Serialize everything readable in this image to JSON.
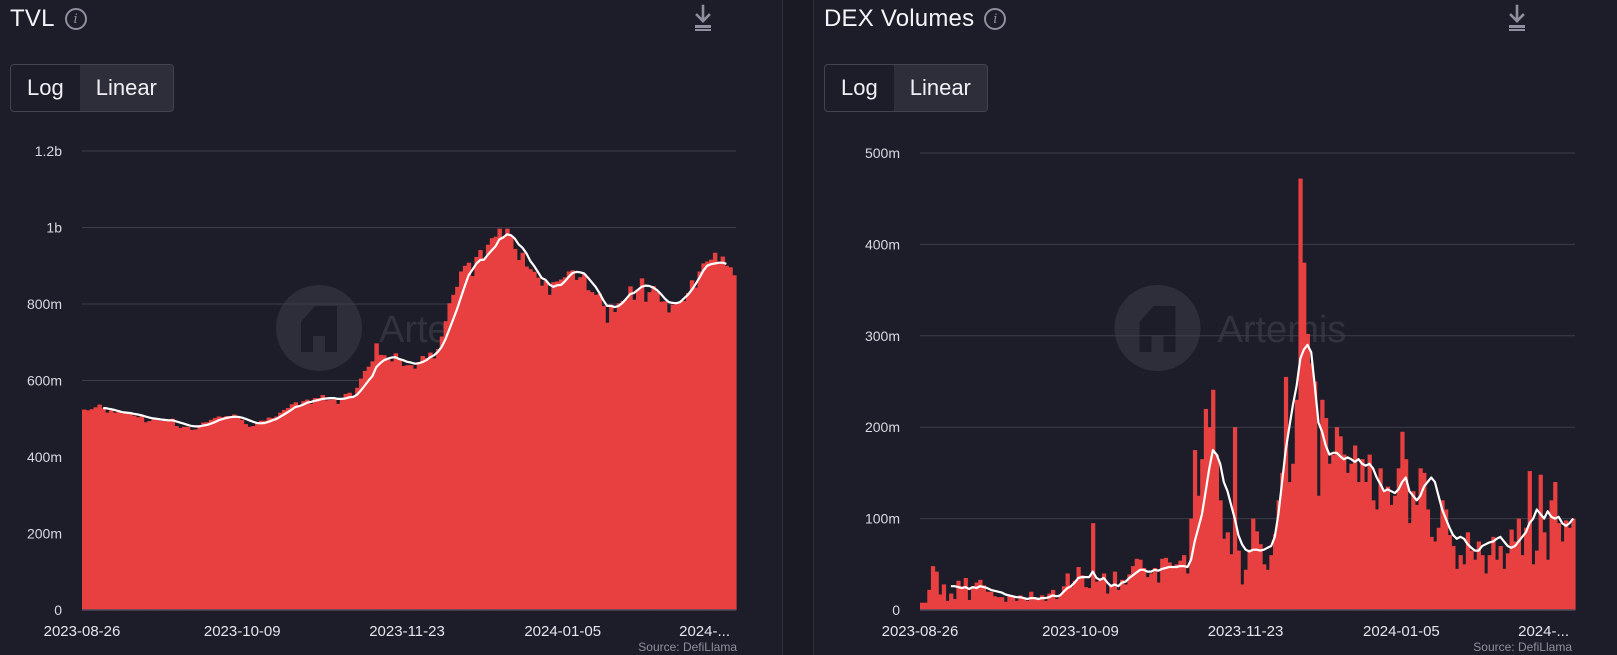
{
  "panels": [
    {
      "title": "TVL",
      "toggle": {
        "log_label": "Log",
        "linear_label": "Linear",
        "selected": "Linear"
      },
      "source": "Source: DefiLlama",
      "watermark": "Artemis"
    },
    {
      "title": "DEX Volumes",
      "toggle": {
        "log_label": "Log",
        "linear_label": "Linear",
        "selected": "Linear"
      },
      "source": "Source: DefiLlama",
      "watermark": "Artemis"
    }
  ],
  "colors": {
    "bar": "#e84040",
    "line": "#ffffff",
    "grid": "#3d3d4b",
    "background": "#1d1d29"
  },
  "icons": {
    "info": "info-circle-icon",
    "download": "download-icon"
  },
  "chart_data": [
    {
      "type": "bar",
      "title": "TVL",
      "scale": "linear",
      "ylim": [
        0,
        1200000000
      ],
      "yticks": [
        0,
        200000000,
        400000000,
        600000000,
        800000000,
        1000000000,
        1200000000
      ],
      "yticklabels": [
        "0",
        "200m",
        "400m",
        "600m",
        "800m",
        "1b",
        "1.2b"
      ],
      "xticklabels": [
        "2023-08-26",
        "2023-10-09",
        "2023-11-23",
        "2024-01-05",
        "2024-..."
      ],
      "grid": true,
      "series": [
        {
          "type": "bar",
          "values": [
            524000000.0,
            522000000.0,
            525000000.0,
            530000000.0,
            537000000.0,
            527000000.0,
            516000000.0,
            522000000.0,
            516000000.0,
            518000000.0,
            514000000.0,
            514000000.0,
            515000000.0,
            508000000.0,
            504000000.0,
            510000000.0,
            491000000.0,
            494000000.0,
            498000000.0,
            499000000.0,
            494000000.0,
            497000000.0,
            498000000.0,
            500000000.0,
            481000000.0,
            476000000.0,
            479000000.0,
            479000000.0,
            471000000.0,
            472000000.0,
            483000000.0,
            490000000.0,
            491000000.0,
            497000000.0,
            502000000.0,
            506000000.0,
            504000000.0,
            507000000.0,
            506000000.0,
            511000000.0,
            503000000.0,
            497000000.0,
            486000000.0,
            479000000.0,
            481000000.0,
            489000000.0,
            495000000.0,
            495000000.0,
            503000000.0,
            502000000.0,
            506000000.0,
            516000000.0,
            523000000.0,
            528000000.0,
            538000000.0,
            543000000.0,
            533000000.0,
            546000000.0,
            550000000.0,
            539000000.0,
            554000000.0,
            554000000.0,
            562000000.0,
            548000000.0,
            550000000.0,
            551000000.0,
            539000000.0,
            554000000.0,
            565000000.0,
            568000000.0,
            558000000.0,
            581000000.0,
            605000000.0,
            625000000.0,
            636000000.0,
            650000000.0,
            697000000.0,
            667000000.0,
            666000000.0,
            659000000.0,
            650000000.0,
            671000000.0,
            654000000.0,
            638000000.0,
            640000000.0,
            640000000.0,
            631000000.0,
            648000000.0,
            664000000.0,
            659000000.0,
            673000000.0,
            658000000.0,
            682000000.0,
            715000000.0,
            755000000.0,
            802000000.0,
            824000000.0,
            845000000.0,
            885000000.0,
            900000000.0,
            908000000.0,
            873000000.0,
            923000000.0,
            941000000.0,
            919000000.0,
            955000000.0,
            972000000.0,
            976000000.0,
            997000000.0,
            976000000.0,
            997000000.0,
            978000000.0,
            944000000.0,
            915000000.0,
            934000000.0,
            898000000.0,
            891000000.0,
            884000000.0,
            869000000.0,
            848000000.0,
            860000000.0,
            824000000.0,
            857000000.0,
            859000000.0,
            864000000.0,
            870000000.0,
            885000000.0,
            888000000.0,
            863000000.0,
            870000000.0,
            879000000.0,
            836000000.0,
            831000000.0,
            824000000.0,
            827000000.0,
            795000000.0,
            751000000.0,
            798000000.0,
            779000000.0,
            802000000.0,
            808000000.0,
            812000000.0,
            846000000.0,
            811000000.0,
            838000000.0,
            867000000.0,
            806000000.0,
            831000000.0,
            847000000.0,
            832000000.0,
            806000000.0,
            807000000.0,
            778000000.0,
            798000000.0,
            805000000.0,
            804000000.0,
            808000000.0,
            829000000.0,
            862000000.0,
            843000000.0,
            885000000.0,
            906000000.0,
            911000000.0,
            916000000.0,
            934000000.0,
            910000000.0,
            924000000.0,
            900000000.0,
            896000000.0,
            875000000.0
          ]
        },
        {
          "type": "line",
          "values": [
            null,
            null,
            null,
            null,
            null,
            528000000.0,
            527000000.0,
            525000000.0,
            523000000.0,
            520000000.0,
            517000000.0,
            516000000.0,
            515000000.0,
            513000000.0,
            511000000.0,
            509000000.0,
            506000000.0,
            503000000.0,
            501000000.0,
            500000000.0,
            498000000.0,
            497000000.0,
            496000000.0,
            496000000.0,
            493000000.0,
            490000000.0,
            487000000.0,
            484000000.0,
            481000000.0,
            480000000.0,
            480000000.0,
            482000000.0,
            484000000.0,
            487000000.0,
            491000000.0,
            496000000.0,
            499000000.0,
            502000000.0,
            504000000.0,
            505000000.0,
            505000000.0,
            503000000.0,
            500000000.0,
            496000000.0,
            492000000.0,
            489000000.0,
            488000000.0,
            489000000.0,
            492000000.0,
            496000000.0,
            499000000.0,
            505000000.0,
            511000000.0,
            517000000.0,
            524000000.0,
            531000000.0,
            533000000.0,
            537000000.0,
            542000000.0,
            544000000.0,
            547000000.0,
            549000000.0,
            552000000.0,
            553000000.0,
            554000000.0,
            554000000.0,
            552000000.0,
            552000000.0,
            553000000.0,
            556000000.0,
            557000000.0,
            563000000.0,
            574000000.0,
            587000000.0,
            600000000.0,
            612000000.0,
            635000000.0,
            645000000.0,
            653000000.0,
            657000000.0,
            660000000.0,
            661000000.0,
            656000000.0,
            653000000.0,
            649000000.0,
            647000000.0,
            644000000.0,
            645000000.0,
            648000000.0,
            653000000.0,
            661000000.0,
            666000000.0,
            675000000.0,
            688000000.0,
            708000000.0,
            734000000.0,
            760000000.0,
            787000000.0,
            817000000.0,
            847000000.0,
            875000000.0,
            890000000.0,
            905000000.0,
            915000000.0,
            916000000.0,
            929000000.0,
            940000000.0,
            951000000.0,
            969000000.0,
            974000000.0,
            982000000.0,
            980000000.0,
            971000000.0,
            956000000.0,
            947000000.0,
            933000000.0,
            913000000.0,
            900000000.0,
            884000000.0,
            868000000.0,
            863000000.0,
            851000000.0,
            845000000.0,
            849000000.0,
            850000000.0,
            859000000.0,
            871000000.0,
            881000000.0,
            884000000.0,
            883000000.0,
            880000000.0,
            869000000.0,
            857000000.0,
            845000000.0,
            829000000.0,
            810000000.0,
            795000000.0,
            795000000.0,
            792000000.0,
            795000000.0,
            803000000.0,
            814000000.0,
            826000000.0,
            829000000.0,
            837000000.0,
            845000000.0,
            848000000.0,
            847000000.0,
            843000000.0,
            836000000.0,
            826000000.0,
            814000000.0,
            805000000.0,
            803000000.0,
            802000000.0,
            805000000.0,
            815000000.0,
            824000000.0,
            837000000.0,
            852000000.0,
            869000000.0,
            887000000.0,
            900000000.0,
            904000000.0,
            906000000.0,
            908000000.0,
            908000000.0,
            905000000.0
          ]
        }
      ]
    },
    {
      "type": "bar",
      "title": "DEX Volumes",
      "scale": "linear",
      "ylim": [
        0,
        500000000
      ],
      "yticks": [
        0,
        100000000,
        200000000,
        300000000,
        400000000,
        500000000
      ],
      "yticklabels": [
        "0",
        "100m",
        "200m",
        "300m",
        "400m",
        "500m"
      ],
      "xticklabels": [
        "2023-08-26",
        "2023-10-09",
        "2023-11-23",
        "2024-01-05",
        "2024-..."
      ],
      "grid": true,
      "series": [
        {
          "type": "bar",
          "values": [
            8000000.0,
            8000000.0,
            22000000.0,
            48000000.0,
            42000000.0,
            17000000.0,
            28000000.0,
            10000000.0,
            18000000.0,
            12000000.0,
            32000000.0,
            26000000.0,
            35000000.0,
            11000000.0,
            26000000.0,
            30000000.0,
            33000000.0,
            27000000.0,
            20000000.0,
            20000000.0,
            15000000.0,
            14000000.0,
            14000000.0,
            9000000.0,
            16000000.0,
            15000000.0,
            10000000.0,
            16000000.0,
            12000000.0,
            10000000.0,
            20000000.0,
            14000000.0,
            11000000.0,
            16000000.0,
            10000000.0,
            18000000.0,
            22000000.0,
            12000000.0,
            16000000.0,
            26000000.0,
            40000000.0,
            25000000.0,
            32000000.0,
            47000000.0,
            38000000.0,
            25000000.0,
            24000000.0,
            95000000.0,
            31000000.0,
            33000000.0,
            40000000.0,
            18000000.0,
            28000000.0,
            42000000.0,
            22000000.0,
            33000000.0,
            28000000.0,
            39000000.0,
            48000000.0,
            56000000.0,
            55000000.0,
            46000000.0,
            36000000.0,
            40000000.0,
            46000000.0,
            30000000.0,
            56000000.0,
            57000000.0,
            52000000.0,
            48000000.0,
            50000000.0,
            54000000.0,
            60000000.0,
            40000000.0,
            100000000.0,
            175000000.0,
            125000000.0,
            165000000.0,
            220000000.0,
            200000000.0,
            241000000.0,
            170000000.0,
            120000000.0,
            78000000.0,
            85000000.0,
            61000000.0,
            200000000.0,
            65000000.0,
            28000000.0,
            44000000.0,
            66000000.0,
            100000000.0,
            86000000.0,
            72000000.0,
            50000000.0,
            44000000.0,
            60000000.0,
            83000000.0,
            120000000.0,
            150000000.0,
            255000000.0,
            140000000.0,
            160000000.0,
            230000000.0,
            472000000.0,
            380000000.0,
            302000000.0,
            270000000.0,
            250000000.0,
            125000000.0,
            230000000.0,
            210000000.0,
            160000000.0,
            170000000.0,
            200000000.0,
            190000000.0,
            170000000.0,
            150000000.0,
            160000000.0,
            180000000.0,
            140000000.0,
            165000000.0,
            140000000.0,
            170000000.0,
            120000000.0,
            110000000.0,
            155000000.0,
            130000000.0,
            135000000.0,
            115000000.0,
            125000000.0,
            155000000.0,
            195000000.0,
            165000000.0,
            95000000.0,
            130000000.0,
            115000000.0,
            155000000.0,
            150000000.0,
            110000000.0,
            80000000.0,
            75000000.0,
            90000000.0,
            120000000.0,
            110000000.0,
            82000000.0,
            70000000.0,
            45000000.0,
            60000000.0,
            50000000.0,
            85000000.0,
            65000000.0,
            55000000.0,
            75000000.0,
            60000000.0,
            40000000.0,
            60000000.0,
            80000000.0,
            55000000.0,
            70000000.0,
            45000000.0,
            62000000.0,
            88000000.0,
            75000000.0,
            100000000.0,
            60000000.0,
            90000000.0,
            152000000.0,
            50000000.0,
            65000000.0,
            148000000.0,
            85000000.0,
            55000000.0,
            120000000.0,
            140000000.0,
            95000000.0,
            75000000.0,
            98000000.0,
            90000000.0,
            100000000.0
          ]
        },
        {
          "type": "line",
          "values": [
            null,
            null,
            null,
            null,
            null,
            null,
            null,
            null,
            26000000.0,
            26000000.0,
            25000000.0,
            24000000.0,
            25000000.0,
            23000000.0,
            25000000.0,
            24000000.0,
            26000000.0,
            25000000.0,
            24000000.0,
            22000000.0,
            21000000.0,
            20000000.0,
            19000000.0,
            17000000.0,
            16000000.0,
            15000000.0,
            14000000.0,
            14000000.0,
            13000000.0,
            12000000.0,
            13000000.0,
            13000000.0,
            12000000.0,
            13000000.0,
            13000000.0,
            14000000.0,
            16000000.0,
            15000000.0,
            16000000.0,
            20000000.0,
            24000000.0,
            26000000.0,
            30000000.0,
            35000000.0,
            36000000.0,
            36000000.0,
            36000000.0,
            42000000.0,
            35000000.0,
            33000000.0,
            35000000.0,
            30000000.0,
            26000000.0,
            28000000.0,
            26000000.0,
            30000000.0,
            31000000.0,
            35000000.0,
            38000000.0,
            41000000.0,
            44000000.0,
            44000000.0,
            42000000.0,
            42000000.0,
            44000000.0,
            43000000.0,
            45000000.0,
            46000000.0,
            47000000.0,
            47000000.0,
            47000000.0,
            48000000.0,
            48000000.0,
            47000000.0,
            55000000.0,
            75000000.0,
            90000000.0,
            105000000.0,
            130000000.0,
            155000000.0,
            175000000.0,
            170000000.0,
            160000000.0,
            140000000.0,
            130000000.0,
            115000000.0,
            100000000.0,
            82000000.0,
            72000000.0,
            66000000.0,
            64000000.0,
            66000000.0,
            66000000.0,
            65000000.0,
            66000000.0,
            68000000.0,
            70000000.0,
            80000000.0,
            105000000.0,
            140000000.0,
            175000000.0,
            200000000.0,
            225000000.0,
            245000000.0,
            275000000.0,
            285000000.0,
            290000000.0,
            282000000.0,
            245000000.0,
            205000000.0,
            195000000.0,
            180000000.0,
            170000000.0,
            172000000.0,
            172000000.0,
            168000000.0,
            165000000.0,
            167000000.0,
            165000000.0,
            162000000.0,
            165000000.0,
            160000000.0,
            158000000.0,
            160000000.0,
            155000000.0,
            145000000.0,
            138000000.0,
            130000000.0,
            132000000.0,
            130000000.0,
            128000000.0,
            132000000.0,
            140000000.0,
            145000000.0,
            130000000.0,
            125000000.0,
            120000000.0,
            125000000.0,
            135000000.0,
            140000000.0,
            145000000.0,
            140000000.0,
            125000000.0,
            110000000.0,
            100000000.0,
            90000000.0,
            82000000.0,
            78000000.0,
            80000000.0,
            78000000.0,
            72000000.0,
            68000000.0,
            65000000.0,
            65000000.0,
            70000000.0,
            72000000.0,
            74000000.0,
            75000000.0,
            78000000.0,
            80000000.0,
            75000000.0,
            70000000.0,
            68000000.0,
            70000000.0,
            75000000.0,
            80000000.0,
            85000000.0,
            95000000.0,
            100000000.0,
            110000000.0,
            105000000.0,
            100000000.0,
            108000000.0,
            102000000.0,
            100000000.0,
            102000000.0,
            95000000.0,
            92000000.0,
            95000000.0,
            100000000.0
          ]
        }
      ]
    }
  ]
}
